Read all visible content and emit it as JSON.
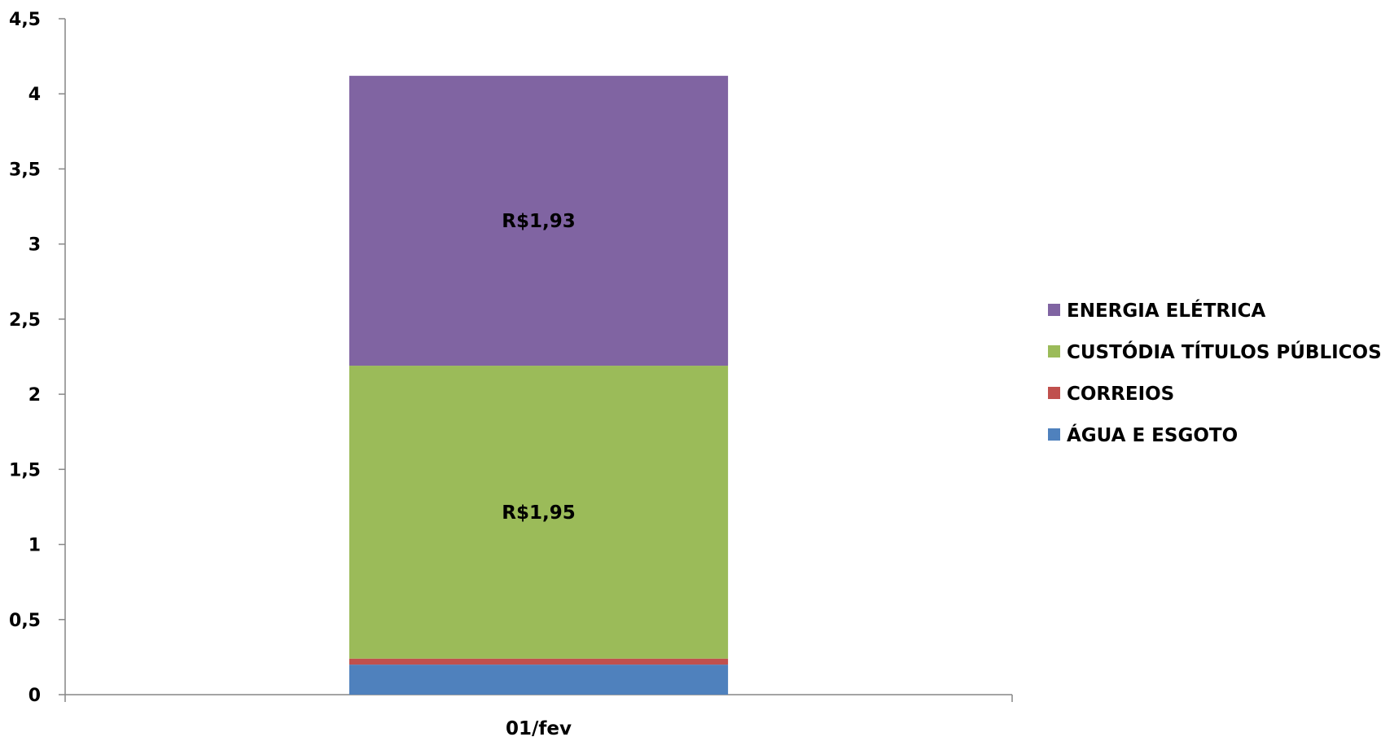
{
  "chart_data": {
    "type": "bar",
    "stacked": true,
    "categories": [
      "01/fev"
    ],
    "series": [
      {
        "name": "ÁGUA E ESGOTO",
        "values": [
          0.2
        ],
        "color": "#4F81BD",
        "label": ""
      },
      {
        "name": "CORREIOS",
        "values": [
          0.04
        ],
        "color": "#C0504D",
        "label": ""
      },
      {
        "name": "CUSTÓDIA TÍTULOS PÚBLICOS",
        "values": [
          1.95
        ],
        "color": "#9BBB59",
        "label": "R$1,95"
      },
      {
        "name": "ENERGIA ELÉTRICA",
        "values": [
          1.93
        ],
        "color": "#8064A2",
        "label": "R$1,93"
      }
    ],
    "y_ticks": [
      "0",
      "0,5",
      "1",
      "1,5",
      "2",
      "2,5",
      "3",
      "3,5",
      "4",
      "4,5"
    ],
    "ylim": [
      0,
      4.5
    ],
    "grid": false,
    "legend_position": "right",
    "title": "",
    "xlabel": "",
    "ylabel": ""
  }
}
